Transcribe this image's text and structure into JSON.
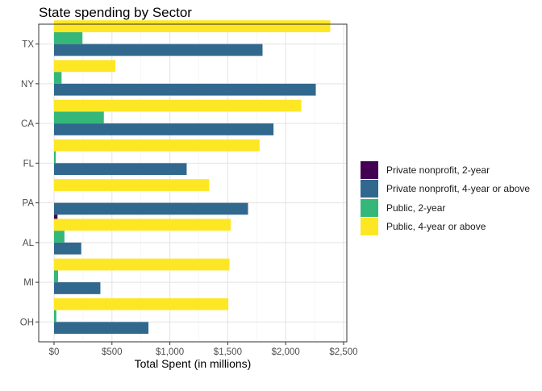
{
  "chart_data": {
    "type": "bar",
    "orientation": "horizontal",
    "title": "State spending by Sector",
    "xlabel": "Total Spent (in millions)",
    "ylabel": "",
    "xlim": [
      0,
      2500
    ],
    "x_ticks": [
      0,
      500,
      1000,
      1500,
      2000,
      2500
    ],
    "x_tick_labels": [
      "$0",
      "$500",
      "$1,000",
      "$1,500",
      "$2,000",
      "$2,500"
    ],
    "grid": true,
    "legend_position": "right",
    "categories": [
      "TX",
      "NY",
      "CA",
      "FL",
      "PA",
      "AL",
      "MI",
      "OH"
    ],
    "series": [
      {
        "name": "Private nonprofit, 2-year",
        "color": "#440154",
        "values": [
          0,
          0,
          0,
          0,
          30,
          0,
          0,
          0
        ]
      },
      {
        "name": "Private nonprofit, 4-year or above",
        "color": "#31688E",
        "values": [
          1800,
          2260,
          1895,
          1145,
          1675,
          235,
          400,
          815
        ]
      },
      {
        "name": "Public, 2-year",
        "color": "#35B779",
        "values": [
          245,
          65,
          430,
          15,
          0,
          90,
          35,
          20
        ]
      },
      {
        "name": "Public, 4-year or above",
        "color": "#FDE725",
        "values": [
          2385,
          530,
          2135,
          1775,
          1340,
          1525,
          1515,
          1505
        ]
      }
    ]
  }
}
